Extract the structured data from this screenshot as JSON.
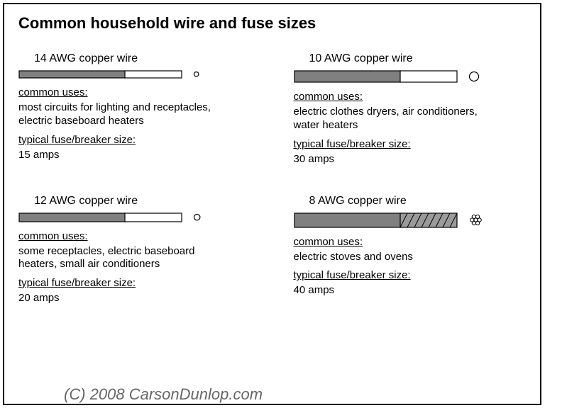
{
  "title": "Common household wire and fuse sizes",
  "labels": {
    "common_uses": "common uses:",
    "fuse_size": "typical fuse/breaker size:"
  },
  "colors": {
    "insulation": "#808080",
    "conductor_fill": "#ffffff",
    "stroke": "#000000",
    "stranded_fill": "#9a9a9a",
    "background": "#ffffff",
    "watermark": "#666666"
  },
  "wire_drawing": {
    "total_length": 230,
    "insulation_length": 150,
    "stroke_width": 1.2
  },
  "wires": [
    {
      "name": "14 AWG copper wire",
      "height": 10,
      "cross_section": {
        "type": "solid",
        "radius": 3.2
      },
      "uses": "most circuits for lighting and receptacles, electric baseboard heaters",
      "fuse": "15 amps"
    },
    {
      "name": "10 AWG copper wire",
      "height": 16,
      "cross_section": {
        "type": "solid",
        "radius": 6.5
      },
      "uses": "electric clothes dryers, air conditioners, water heaters",
      "fuse": "30 amps"
    },
    {
      "name": "12 AWG copper wire",
      "height": 12,
      "cross_section": {
        "type": "solid",
        "radius": 4.2
      },
      "uses": "some receptacles, electric baseboard heaters, small air conditioners",
      "fuse": "20 amps"
    },
    {
      "name": "8 AWG copper wire",
      "height": 20,
      "cross_section": {
        "type": "stranded",
        "radius": 8.5,
        "strand_radius": 2.6
      },
      "uses": "electric stoves and ovens",
      "fuse": "40 amps",
      "stranded_conductor": true
    }
  ],
  "watermark": "(C) 2008 CarsonDunlop.com"
}
